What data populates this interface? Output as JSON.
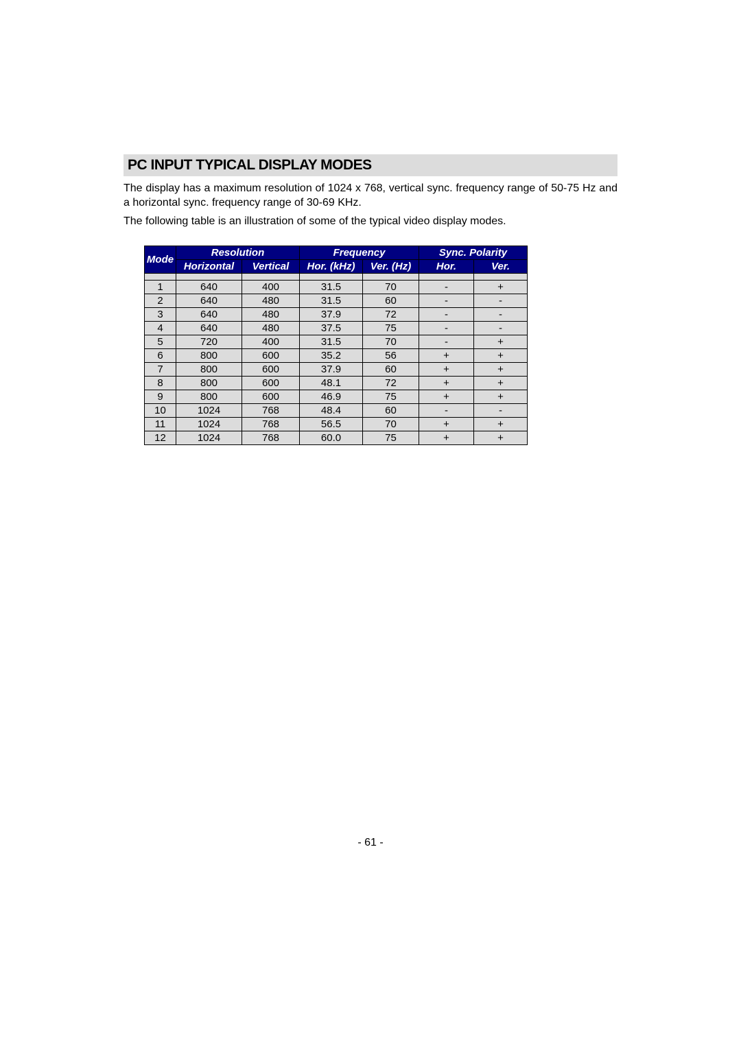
{
  "title": "PC INPUT TYPICAL DISPLAY MODES",
  "para1": "The display has a maximum resolution of 1024 x 768, vertical sync. frequency range of 50-75 Hz and a horizontal sync. frequency range of 30-69 KHz.",
  "para2": "The following table is an illustration of some of the typical video display modes.",
  "headers": {
    "mode": "Mode",
    "resolution": "Resolution",
    "frequency": "Frequency",
    "sync": "Sync. Polarity",
    "horizontal": "Horizontal",
    "vertical": "Vertical",
    "horkhz": "Hor. (kHz)",
    "verhz": "Ver. (Hz)",
    "horp": "Hor.",
    "verp": "Ver."
  },
  "rows": [
    {
      "mode": "1",
      "h": "640",
      "v": "400",
      "fh": "31.5",
      "fv": "70",
      "ph": "-",
      "pv": "+"
    },
    {
      "mode": "2",
      "h": "640",
      "v": "480",
      "fh": "31.5",
      "fv": "60",
      "ph": "-",
      "pv": "-"
    },
    {
      "mode": "3",
      "h": "640",
      "v": "480",
      "fh": "37.9",
      "fv": "72",
      "ph": "-",
      "pv": "-"
    },
    {
      "mode": "4",
      "h": "640",
      "v": "480",
      "fh": "37.5",
      "fv": "75",
      "ph": "-",
      "pv": "-"
    },
    {
      "mode": "5",
      "h": "720",
      "v": "400",
      "fh": "31.5",
      "fv": "70",
      "ph": "-",
      "pv": "+"
    },
    {
      "mode": "6",
      "h": "800",
      "v": "600",
      "fh": "35.2",
      "fv": "56",
      "ph": "+",
      "pv": "+"
    },
    {
      "mode": "7",
      "h": "800",
      "v": "600",
      "fh": "37.9",
      "fv": "60",
      "ph": "+",
      "pv": "+"
    },
    {
      "mode": "8",
      "h": "800",
      "v": "600",
      "fh": "48.1",
      "fv": "72",
      "ph": "+",
      "pv": "+"
    },
    {
      "mode": "9",
      "h": "800",
      "v": "600",
      "fh": "46.9",
      "fv": "75",
      "ph": "+",
      "pv": "+"
    },
    {
      "mode": "10",
      "h": "1024",
      "v": "768",
      "fh": "48.4",
      "fv": "60",
      "ph": "-",
      "pv": "-"
    },
    {
      "mode": "11",
      "h": "1024",
      "v": "768",
      "fh": "56.5",
      "fv": "70",
      "ph": "+",
      "pv": "+"
    },
    {
      "mode": "12",
      "h": "1024",
      "v": "768",
      "fh": "60.0",
      "fv": "75",
      "ph": "+",
      "pv": "+"
    }
  ],
  "page_number": "- 61 -",
  "colors": {
    "header_bg": "#000080",
    "header_text": "#ffffff",
    "cell_bg": "#dcdcdc",
    "title_bg": "#dcdcdc",
    "border": "#000000"
  }
}
